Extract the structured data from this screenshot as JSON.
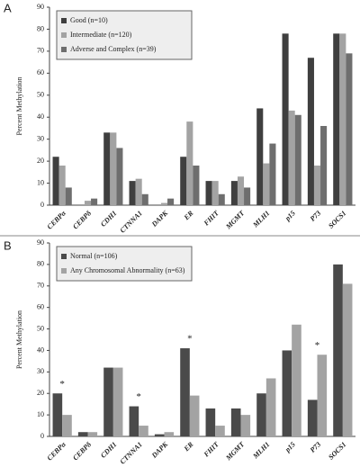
{
  "chart_data": [
    {
      "type": "bar",
      "panel": "A",
      "ylabel": "Percent Methylation",
      "categories": [
        "CEBPα",
        "CEBPδ",
        "CDH1",
        "CTNNA1",
        "DAPK",
        "ER",
        "FHIT",
        "MGMT",
        "MLH1",
        "p15",
        "P73",
        "SOCS1"
      ],
      "series": [
        {
          "name": "Good (n=10)",
          "color": "#3f3f3f",
          "values": [
            22,
            0,
            33,
            11,
            0,
            22,
            11,
            11,
            44,
            78,
            67,
            78
          ]
        },
        {
          "name": "Intermediate (n=120)",
          "color": "#a3a3a3",
          "values": [
            18,
            2,
            33,
            12,
            1,
            38,
            11,
            13,
            19,
            43,
            18,
            78
          ]
        },
        {
          "name": "Adverse and Complex (n=39)",
          "color": "#6e6e6e",
          "values": [
            8,
            3,
            26,
            5,
            3,
            18,
            5,
            8,
            28,
            41,
            36,
            69
          ]
        }
      ],
      "ylim": [
        0,
        90
      ],
      "yticks": [
        0,
        10,
        20,
        30,
        40,
        50,
        60,
        70,
        80,
        90
      ],
      "legend": "upper left"
    },
    {
      "type": "bar",
      "panel": "B",
      "ylabel": "Percent Methylation",
      "categories": [
        "CEBPα",
        "CEBPδ",
        "CDH1",
        "CTNNA1",
        "DAPK",
        "ER",
        "FHIT",
        "MGMT",
        "MLH1",
        "p15",
        "P73",
        "SOCS1"
      ],
      "series": [
        {
          "name": "Normal (n=106)",
          "color": "#4a4a4a",
          "values": [
            20,
            2,
            32,
            14,
            1,
            41,
            13,
            13,
            20,
            40,
            17,
            80
          ]
        },
        {
          "name": "Any Chromosomal Abnormality (n=63)",
          "color": "#a3a3a3",
          "values": [
            10,
            2,
            32,
            5,
            2,
            19,
            5,
            10,
            27,
            52,
            38,
            71
          ]
        }
      ],
      "ylim": [
        0,
        90
      ],
      "yticks": [
        0,
        10,
        20,
        30,
        40,
        50,
        60,
        70,
        80,
        90
      ],
      "legend": "upper left",
      "annotations": [
        {
          "text": "*",
          "category": "CEBPα"
        },
        {
          "text": "*",
          "category": "CTNNA1"
        },
        {
          "text": "*",
          "category": "ER"
        },
        {
          "text": "*",
          "category": "P73"
        }
      ]
    }
  ]
}
